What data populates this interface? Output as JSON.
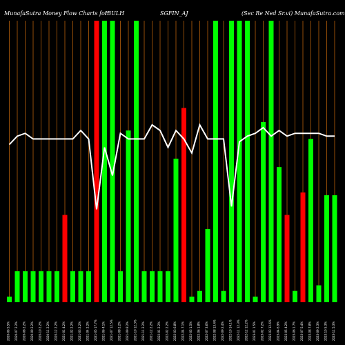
{
  "header": {
    "left": "MunafaSutra  Money Flow  Charts for",
    "symbol": "IBULH",
    "series": "SGFIN_AJ",
    "right": "(Sec Re   Ned Sr.vi) MunafaSutra.com"
  },
  "colors": {
    "background": "#000000",
    "gridline": "#b8600a",
    "up_bar": "#00ff00",
    "down_bar": "#ff0000",
    "line": "#ffffff",
    "text": "#ffffff"
  },
  "chart_data": {
    "type": "bar",
    "ylim": [
      0,
      100
    ],
    "bars": [
      {
        "label": "2020-06 5.5%",
        "value": 2,
        "dir": "up"
      },
      {
        "label": "2020-07 2.2%",
        "value": 11,
        "dir": "up"
      },
      {
        "label": "2020-08 2.2%",
        "value": 11,
        "dir": "up"
      },
      {
        "label": "2020-09 2.2%",
        "value": 11,
        "dir": "up"
      },
      {
        "label": "2020-10 2.2%",
        "value": 11,
        "dir": "up"
      },
      {
        "label": "2020-11 2.2%",
        "value": 11,
        "dir": "up"
      },
      {
        "label": "2020-12 2.2%",
        "value": 11,
        "dir": "up"
      },
      {
        "label": "2021-01 4.2%",
        "value": 31,
        "dir": "down"
      },
      {
        "label": "2021-02 2.2%",
        "value": 11,
        "dir": "up"
      },
      {
        "label": "2021-03 2.2%",
        "value": 11,
        "dir": "up"
      },
      {
        "label": "2021-04 2.2%",
        "value": 11,
        "dir": "up"
      },
      {
        "label": "2021-05 17.7%",
        "value": 100,
        "dir": "down"
      },
      {
        "label": "2021-06 4.1%",
        "value": 100,
        "dir": "up"
      },
      {
        "label": "2021-07 12.5%",
        "value": 100,
        "dir": "up"
      },
      {
        "label": "2021-08 2.2%",
        "value": 11,
        "dir": "up"
      },
      {
        "label": "2021-09 8.2%",
        "value": 61,
        "dir": "up"
      },
      {
        "label": "2021-10 12.3%",
        "value": 100,
        "dir": "up"
      },
      {
        "label": "2021-11 2.2%",
        "value": 11,
        "dir": "up"
      },
      {
        "label": "2021-12 2.2%",
        "value": 11,
        "dir": "up"
      },
      {
        "label": "2022-01 2.2%",
        "value": 11,
        "dir": "up"
      },
      {
        "label": "2022-02 2.2%",
        "value": 11,
        "dir": "up"
      },
      {
        "label": "2022-03 6.8%",
        "value": 51,
        "dir": "up"
      },
      {
        "label": "2022-04 7.1%",
        "value": 69,
        "dir": "down"
      },
      {
        "label": "2022-05 1.5%",
        "value": 2,
        "dir": "up"
      },
      {
        "label": "2022-06 1.8%",
        "value": 4,
        "dir": "up"
      },
      {
        "label": "2022-07 3.6%",
        "value": 26,
        "dir": "up"
      },
      {
        "label": "2022-08 13.4%",
        "value": 100,
        "dir": "up"
      },
      {
        "label": "2022-09 2.4%",
        "value": 4,
        "dir": "up"
      },
      {
        "label": "2022-10 14.1%",
        "value": 100,
        "dir": "up"
      },
      {
        "label": "2022-11 12.3%",
        "value": 100,
        "dir": "up"
      },
      {
        "label": "2022-12 12.2%",
        "value": 100,
        "dir": "up"
      },
      {
        "label": "2023-01 1.5%",
        "value": 2,
        "dir": "up"
      },
      {
        "label": "2023-02 7.2%",
        "value": 64,
        "dir": "up"
      },
      {
        "label": "2023-03 12.6%",
        "value": 100,
        "dir": "up"
      },
      {
        "label": "2023-04 6.9%",
        "value": 48,
        "dir": "up"
      },
      {
        "label": "2023-05 4.2%",
        "value": 31,
        "dir": "down"
      },
      {
        "label": "2023-06 1.7%",
        "value": 4,
        "dir": "up"
      },
      {
        "label": "2023-07 5.4%",
        "value": 39,
        "dir": "down"
      },
      {
        "label": "2023-08 7.8%",
        "value": 58,
        "dir": "up"
      },
      {
        "label": "2023-09 2.3%",
        "value": 6,
        "dir": "up"
      },
      {
        "label": "2023-10 5.3%",
        "value": 38,
        "dir": "up"
      },
      {
        "label": "2023-11 5.3%",
        "value": 38,
        "dir": "up"
      }
    ],
    "line": [
      56,
      59,
      60,
      58,
      58,
      58,
      58,
      58,
      58,
      61,
      58,
      33,
      55,
      45,
      60,
      58,
      58,
      58,
      63,
      61,
      55,
      61,
      58,
      53,
      63,
      58,
      58,
      58,
      34,
      57,
      59,
      60,
      62,
      59,
      61,
      59,
      60,
      60,
      60,
      60,
      59,
      59
    ]
  }
}
